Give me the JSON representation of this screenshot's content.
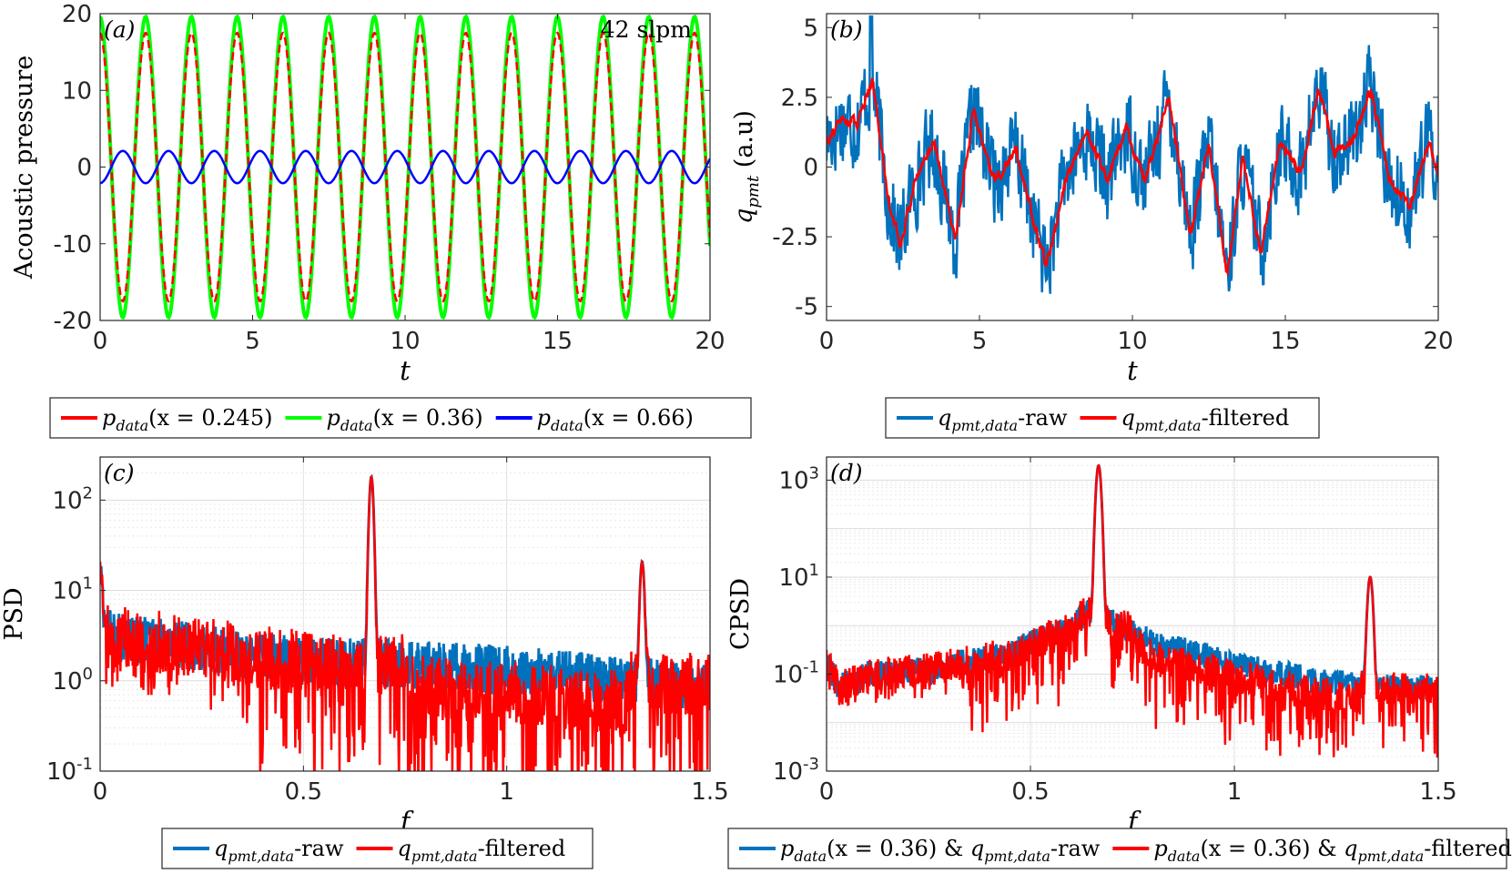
{
  "chart_data": [
    {
      "panel": "(a)",
      "type": "line",
      "title": "",
      "annotation": "42 slpm",
      "xlabel": "t",
      "ylabel": "Acoustic pressure",
      "xlim": [
        0,
        20
      ],
      "ylim": [
        -20,
        20
      ],
      "xticks": [
        "0",
        "5",
        "10",
        "15",
        "20"
      ],
      "yticks": [
        "-20",
        "-10",
        "0",
        "10",
        "20"
      ],
      "oscillation_period": 1.5,
      "series": [
        {
          "name": "p_data(x = 0.245)",
          "color": "#ff0000",
          "amplitude": 17.5,
          "phase": 1.6
        },
        {
          "name": "p_data(x = 0.36)",
          "color": "#00ff00",
          "amplitude": 19.6,
          "phase": 1.6
        },
        {
          "name": "p_data(x = 0.66)",
          "color": "#0000ff",
          "amplitude": 2.1,
          "phase": -1.54
        }
      ],
      "legend": {
        "placement": "below",
        "entries": [
          {
            "main": "p",
            "sub": "data",
            "rest": "(x = 0.245)",
            "color": "#ff0000"
          },
          {
            "main": "p",
            "sub": "data",
            "rest": "(x = 0.36)",
            "color": "#00ff00"
          },
          {
            "main": "p",
            "sub": "data",
            "rest": "(x = 0.66)",
            "color": "#0000ff"
          }
        ]
      }
    },
    {
      "panel": "(b)",
      "type": "line",
      "title": "",
      "xlabel": "t",
      "ylabel": "q_pmt (a.u)",
      "xlim": [
        0,
        20
      ],
      "ylim": [
        -5.5,
        5.5
      ],
      "xticks": [
        "0",
        "5",
        "10",
        "15",
        "20"
      ],
      "yticks": [
        "-5",
        "-2.5",
        "0",
        "2.5",
        "5"
      ],
      "filtered_trend": {
        "t": [
          0,
          0.5,
          1.0,
          1.5,
          2.0,
          2.4,
          2.9,
          3.5,
          4.2,
          4.8,
          5.5,
          6.2,
          6.9,
          7.2,
          7.8,
          8.5,
          9.2,
          9.8,
          10.4,
          11.2,
          11.9,
          12.5,
          13.1,
          13.6,
          14.2,
          14.8,
          15.5,
          16.1,
          16.6,
          17.2,
          17.8,
          18.4,
          19.1,
          19.7,
          20
        ],
        "values": [
          1.0,
          1.7,
          1.6,
          3.2,
          -1.0,
          -2.8,
          -0.5,
          1.0,
          -2.6,
          2.0,
          -0.5,
          0.6,
          -2.5,
          -3.6,
          -0.5,
          1.2,
          -0.5,
          1.4,
          -0.5,
          2.5,
          -2.4,
          0.8,
          -3.8,
          0.2,
          -3.0,
          0.8,
          -0.2,
          2.8,
          0.5,
          1.0,
          2.8,
          -0.5,
          -1.4,
          1.0,
          -0.3
        ]
      },
      "series": [
        {
          "name": "q_pmt,data-raw",
          "color": "#0072bd",
          "noise_amplitude": 1.3
        },
        {
          "name": "q_pmt,data-filtered",
          "color": "#ff0000",
          "noise_amplitude": 0.35
        }
      ],
      "legend": {
        "placement": "below",
        "entries": [
          {
            "main": "q",
            "sub": "pmt,data",
            "rest": "-raw",
            "color": "#0072bd"
          },
          {
            "main": "q",
            "sub": "pmt,data",
            "rest": "-filtered",
            "color": "#ff0000"
          }
        ]
      }
    },
    {
      "panel": "(c)",
      "type": "line",
      "title": "",
      "xlabel": "f",
      "ylabel": "PSD",
      "xlim": [
        0,
        1.5
      ],
      "yscale": "log",
      "ylim": [
        0.1,
        300
      ],
      "xticks": [
        "0",
        "0.5",
        "1",
        "1.5"
      ],
      "yticks": [
        {
          "base": "10",
          "exp": "2",
          "value": 100
        },
        {
          "base": "10",
          "exp": "1",
          "value": 10
        },
        {
          "base": "10",
          "exp": "0",
          "value": 1
        },
        {
          "base": "10",
          "exp": "-1",
          "value": 0.1
        }
      ],
      "peaks": [
        {
          "f": 0.0,
          "value": 15
        },
        {
          "f": 0.667,
          "value": 180
        },
        {
          "f": 1.333,
          "value": 20
        }
      ],
      "floor_profile": {
        "f": [
          0,
          0.05,
          0.2,
          0.4,
          0.55,
          0.8,
          1.1,
          1.3,
          1.5
        ],
        "values": [
          3.5,
          3.0,
          2.5,
          1.8,
          1.6,
          1.5,
          1.2,
          1.0,
          0.9
        ]
      },
      "series": [
        {
          "name": "q_pmt,data-raw",
          "color": "#0072bd"
        },
        {
          "name": "q_pmt,data-filtered",
          "color": "#ff0000"
        }
      ],
      "legend": {
        "placement": "below",
        "entries": [
          {
            "main": "q",
            "sub": "pmt,data",
            "rest": "-raw",
            "color": "#0072bd"
          },
          {
            "main": "q",
            "sub": "pmt,data",
            "rest": "-filtered",
            "color": "#ff0000"
          }
        ]
      }
    },
    {
      "panel": "(d)",
      "type": "line",
      "title": "",
      "xlabel": "f",
      "ylabel": "CPSD",
      "xlim": [
        0,
        1.5
      ],
      "yscale": "log",
      "ylim": [
        0.001,
        3000
      ],
      "xticks": [
        "0",
        "0.5",
        "1",
        "1.5"
      ],
      "yticks": [
        {
          "base": "10",
          "exp": "3",
          "value": 1000
        },
        {
          "base": "10",
          "exp": "1",
          "value": 10
        },
        {
          "base": "10",
          "exp": "-1",
          "value": 0.1
        },
        {
          "base": "10",
          "exp": "-3",
          "value": 0.001
        }
      ],
      "peaks": [
        {
          "f": 0.667,
          "value": 2000
        },
        {
          "f": 1.333,
          "value": 10
        }
      ],
      "floor_profile": {
        "f": [
          0,
          0.03,
          0.1,
          0.25,
          0.45,
          0.6,
          0.64,
          0.7,
          0.8,
          1.0,
          1.2,
          1.3,
          1.4,
          1.5
        ],
        "values": [
          0.15,
          0.05,
          0.1,
          0.12,
          0.25,
          0.8,
          2.0,
          1.2,
          0.4,
          0.15,
          0.07,
          0.06,
          0.05,
          0.05
        ]
      },
      "series": [
        {
          "name": "p_data(x = 0.36) & q_pmt,data-raw",
          "color": "#0072bd"
        },
        {
          "name": "p_data(x = 0.36) & q_pmt,data-filtered",
          "color": "#ff0000"
        }
      ],
      "legend": {
        "placement": "below",
        "entries": [
          {
            "main": "p",
            "sub": "data",
            "rest": "(x = 0.36) & ",
            "main2": "q",
            "sub2": "pmt,data",
            "rest2": "-raw",
            "color": "#0072bd"
          },
          {
            "main": "p",
            "sub": "data",
            "rest": "(x = 0.36) & ",
            "main2": "q",
            "sub2": "pmt,data",
            "rest2": "-filtered",
            "color": "#ff0000"
          }
        ]
      }
    }
  ]
}
